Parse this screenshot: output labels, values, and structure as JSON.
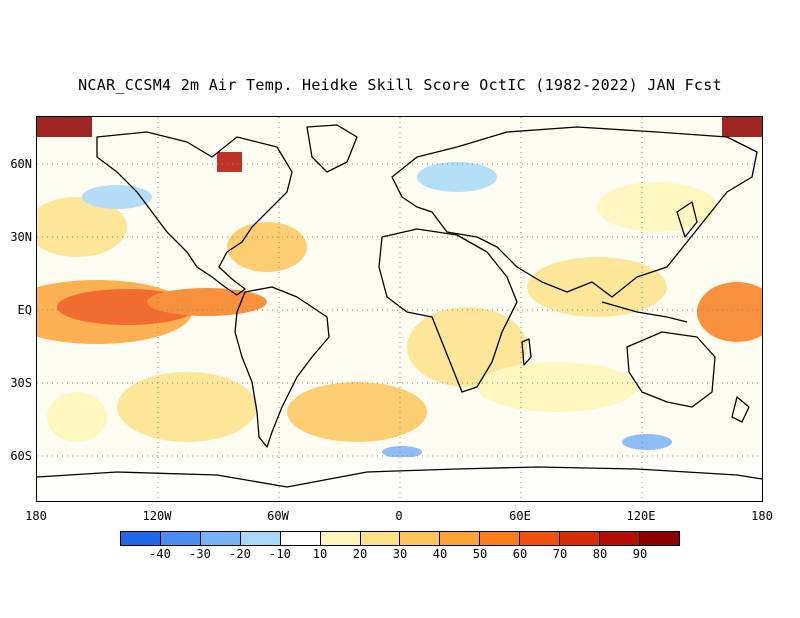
{
  "title": "NCAR_CCSM4 2m Air Temp. Heidke Skill Score OctIC (1982-2022) JAN Fcst",
  "map": {
    "lat_labels": [
      "60N",
      "30N",
      "EQ",
      "30S",
      "60S"
    ],
    "lon_labels": [
      "180",
      "120W",
      "60W",
      "0",
      "60E",
      "120E",
      "180"
    ],
    "gridlines": "dotted"
  },
  "colorbar": {
    "labels": [
      "-40",
      "-30",
      "-20",
      "-10",
      "10",
      "20",
      "30",
      "40",
      "50",
      "60",
      "70",
      "80",
      "90"
    ],
    "colors": [
      "#2166e8",
      "#4a8df2",
      "#7ab2f7",
      "#a6d8f8",
      "#ffffff",
      "#fff5b8",
      "#fee28a",
      "#fdc55c",
      "#fba435",
      "#f87e1d",
      "#f0520e",
      "#d72e08",
      "#b40f04",
      "#8f0000"
    ]
  }
}
